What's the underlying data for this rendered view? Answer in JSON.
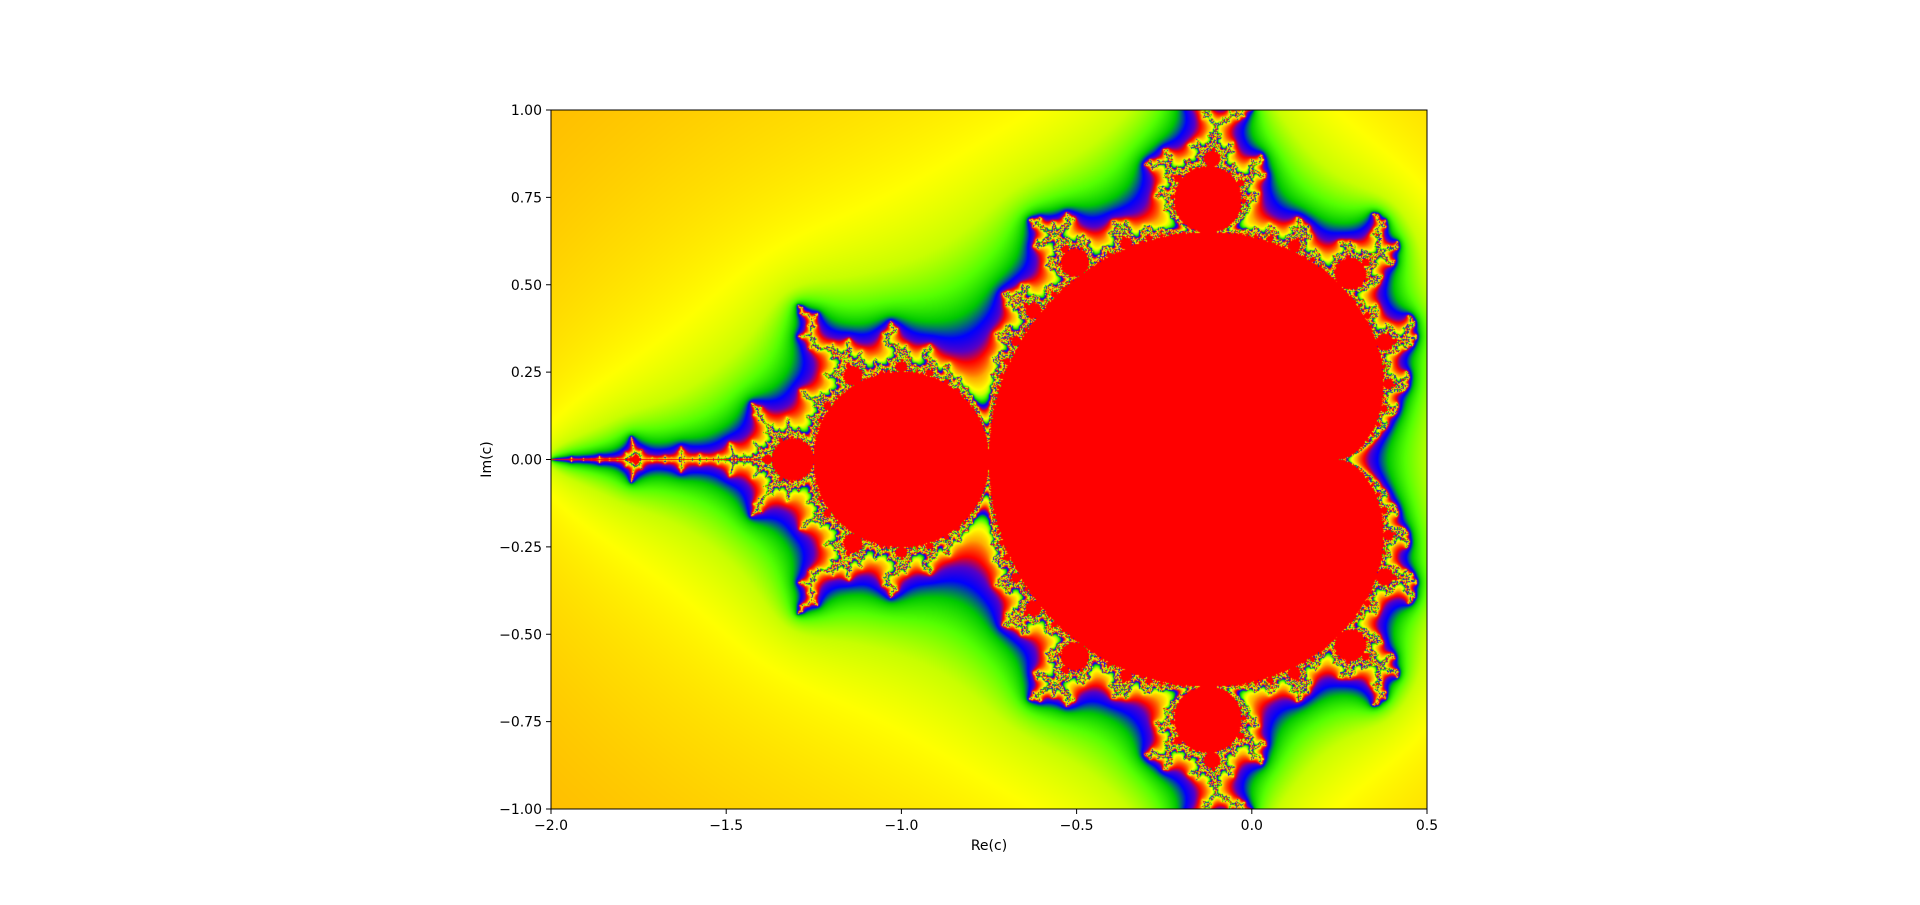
{
  "chart_data": {
    "type": "heatmap",
    "title": "",
    "xlabel": "Re(c)",
    "ylabel": "Im(c)",
    "xlim": [
      -2.0,
      0.5
    ],
    "ylim": [
      -1.0,
      1.0
    ],
    "x_ticks": [
      -2.0,
      -1.5,
      -1.0,
      -0.5,
      0.0,
      0.5
    ],
    "y_ticks": [
      -1.0,
      -0.75,
      -0.5,
      -0.25,
      0.0,
      0.25,
      0.5,
      0.75,
      1.0
    ],
    "x_tick_labels": [
      "−2.0",
      "−1.5",
      "−1.0",
      "−0.5",
      "0.0",
      "0.5"
    ],
    "y_tick_labels": [
      "−1.00",
      "−0.75",
      "−0.50",
      "−0.25",
      "0.00",
      "0.25",
      "0.50",
      "0.75",
      "1.00"
    ],
    "colormap": "prism",
    "grid": false,
    "set_color": "#ff0000",
    "colors": [
      "#ff0000",
      "#ff5500",
      "#ffaa00",
      "#ffd700",
      "#ffff00",
      "#c8ff00",
      "#55ff00",
      "#00c800",
      "#0000ff",
      "#5500c8"
    ]
  }
}
